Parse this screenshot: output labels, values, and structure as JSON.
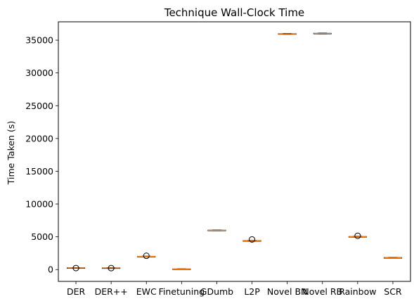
{
  "chart_data": {
    "type": "box",
    "title": "Technique Wall-Clock Time",
    "xlabel": "",
    "ylabel": "Time Taken (s)",
    "ylim": [
      -1800,
      37800
    ],
    "yticks": [
      0,
      5000,
      10000,
      15000,
      20000,
      25000,
      30000,
      35000
    ],
    "grid": false,
    "categories": [
      "DER",
      "DER++",
      "EWC",
      "Finetuning",
      "GDumb",
      "L2P",
      "Novel BN",
      "Novel RB",
      "Rainbow",
      "SCR"
    ],
    "series": [
      {
        "category": "DER",
        "whislo": 180,
        "q1": 210,
        "median": 240,
        "q3": 270,
        "whishi": 290,
        "fliers": [
          230
        ]
      },
      {
        "category": "DER++",
        "whislo": 170,
        "q1": 200,
        "median": 230,
        "q3": 260,
        "whishi": 280,
        "fliers": [
          220
        ]
      },
      {
        "category": "EWC",
        "whislo": 1960,
        "q1": 1980,
        "median": 2000,
        "q3": 2020,
        "whishi": 2040,
        "fliers": [
          2100
        ]
      },
      {
        "category": "Finetuning",
        "whislo": 40,
        "q1": 60,
        "median": 80,
        "q3": 100,
        "whishi": 120,
        "fliers": []
      },
      {
        "category": "GDumb",
        "whislo": 5920,
        "q1": 5950,
        "median": 5980,
        "q3": 6010,
        "whishi": 6040,
        "fliers": []
      },
      {
        "category": "L2P",
        "whislo": 4320,
        "q1": 4350,
        "median": 4380,
        "q3": 4410,
        "whishi": 4440,
        "fliers": [
          4600
        ]
      },
      {
        "category": "Novel BN",
        "whislo": 35900,
        "q1": 35930,
        "median": 35960,
        "q3": 35990,
        "whishi": 36020,
        "fliers": []
      },
      {
        "category": "Novel RB",
        "whislo": 35960,
        "q1": 35990,
        "median": 36020,
        "q3": 36050,
        "whishi": 36080,
        "fliers": []
      },
      {
        "category": "Rainbow",
        "whislo": 4950,
        "q1": 4980,
        "median": 5010,
        "q3": 5040,
        "whishi": 5070,
        "fliers": [
          5150
        ]
      },
      {
        "category": "SCR",
        "whislo": 1740,
        "q1": 1770,
        "median": 1800,
        "q3": 1830,
        "whishi": 1860,
        "fliers": []
      }
    ],
    "colors": {
      "box": "#000000",
      "median": "#ff7f0e",
      "flier": "#000000"
    }
  }
}
